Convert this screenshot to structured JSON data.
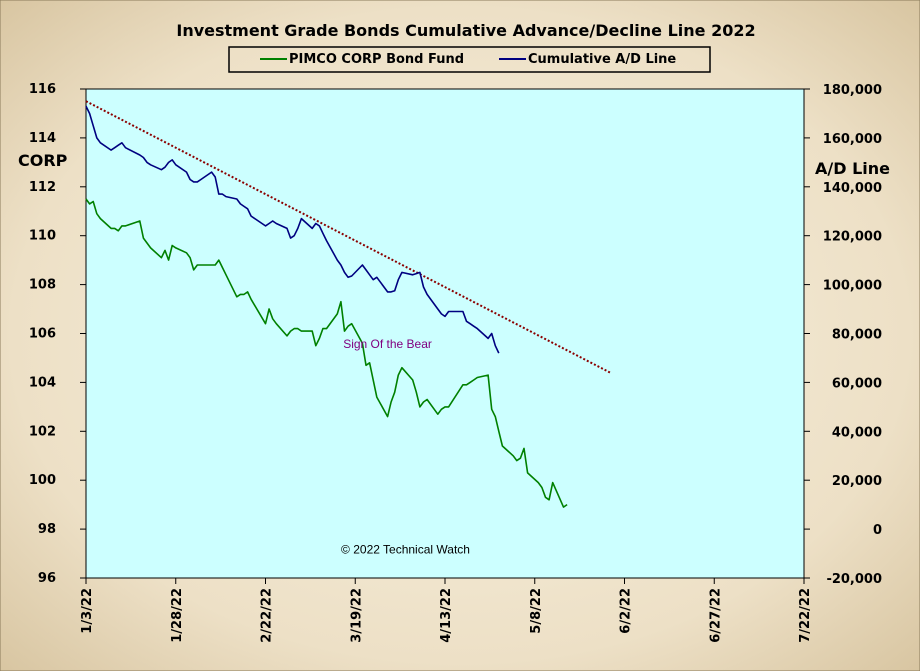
{
  "chart_data": {
    "type": "line",
    "title": "Investment Grade Bonds Cumulative Advance/Decline Line 2022",
    "ylabel_left": "CORP",
    "ylabel_right": "A/D Line",
    "ylim_left": [
      96,
      116
    ],
    "ylim_right": [
      -20000,
      180000
    ],
    "left_ticks": [
      "96",
      "98",
      "100",
      "102",
      "104",
      "106",
      "108",
      "110",
      "112",
      "114",
      "116"
    ],
    "right_ticks": [
      "-20,000",
      "0",
      "20,000",
      "40,000",
      "60,000",
      "80,000",
      "100,000",
      "120,000",
      "140,000",
      "160,000",
      "180,000"
    ],
    "x_ticks": [
      "1/3/22",
      "1/28/22",
      "2/22/22",
      "3/19/22",
      "4/13/22",
      "5/8/22",
      "6/2/22",
      "6/27/22",
      "7/22/22"
    ],
    "x_range": [
      "2022-01-03",
      "2022-07-22"
    ],
    "grid": false,
    "legend_position": "top-center",
    "colors": {
      "outer_background": "#ECDFC4",
      "plot_background": "#CCFFFF",
      "corp": "#008000",
      "ad_line": "#000080",
      "trendline": "#8B0000",
      "annotation": "#800080"
    },
    "series": [
      {
        "name": "PIMCO CORP Bond Fund",
        "axis": "left",
        "points": [
          [
            "2022-01-03",
            111.5
          ],
          [
            "2022-01-04",
            111.3
          ],
          [
            "2022-01-05",
            111.4
          ],
          [
            "2022-01-06",
            110.9
          ],
          [
            "2022-01-07",
            110.7
          ],
          [
            "2022-01-10",
            110.3
          ],
          [
            "2022-01-11",
            110.3
          ],
          [
            "2022-01-12",
            110.2
          ],
          [
            "2022-01-13",
            110.4
          ],
          [
            "2022-01-14",
            110.4
          ],
          [
            "2022-01-18",
            110.6
          ],
          [
            "2022-01-19",
            109.9
          ],
          [
            "2022-01-20",
            109.7
          ],
          [
            "2022-01-21",
            109.5
          ],
          [
            "2022-01-24",
            109.1
          ],
          [
            "2022-01-25",
            109.4
          ],
          [
            "2022-01-26",
            109.0
          ],
          [
            "2022-01-27",
            109.6
          ],
          [
            "2022-01-28",
            109.5
          ],
          [
            "2022-01-31",
            109.3
          ],
          [
            "2022-02-01",
            109.1
          ],
          [
            "2022-02-02",
            108.6
          ],
          [
            "2022-02-03",
            108.8
          ],
          [
            "2022-02-04",
            108.8
          ],
          [
            "2022-02-07",
            108.8
          ],
          [
            "2022-02-08",
            108.8
          ],
          [
            "2022-02-09",
            109.0
          ],
          [
            "2022-02-10",
            108.7
          ],
          [
            "2022-02-11",
            108.4
          ],
          [
            "2022-02-14",
            107.5
          ],
          [
            "2022-02-15",
            107.6
          ],
          [
            "2022-02-16",
            107.6
          ],
          [
            "2022-02-17",
            107.7
          ],
          [
            "2022-02-18",
            107.4
          ],
          [
            "2022-02-22",
            106.4
          ],
          [
            "2022-02-23",
            107.0
          ],
          [
            "2022-02-24",
            106.6
          ],
          [
            "2022-02-25",
            106.4
          ],
          [
            "2022-02-28",
            105.9
          ],
          [
            "2022-03-01",
            106.1
          ],
          [
            "2022-03-02",
            106.2
          ],
          [
            "2022-03-03",
            106.2
          ],
          [
            "2022-03-04",
            106.1
          ],
          [
            "2022-03-07",
            106.1
          ],
          [
            "2022-03-08",
            105.5
          ],
          [
            "2022-03-09",
            105.8
          ],
          [
            "2022-03-10",
            106.2
          ],
          [
            "2022-03-11",
            106.2
          ],
          [
            "2022-03-14",
            106.8
          ],
          [
            "2022-03-15",
            107.3
          ],
          [
            "2022-03-16",
            106.1
          ],
          [
            "2022-03-17",
            106.3
          ],
          [
            "2022-03-18",
            106.4
          ],
          [
            "2022-03-21",
            105.6
          ],
          [
            "2022-03-22",
            104.7
          ],
          [
            "2022-03-23",
            104.8
          ],
          [
            "2022-03-24",
            104.1
          ],
          [
            "2022-03-25",
            103.4
          ],
          [
            "2022-03-28",
            102.6
          ],
          [
            "2022-03-29",
            103.2
          ],
          [
            "2022-03-30",
            103.6
          ],
          [
            "2022-03-31",
            104.3
          ],
          [
            "2022-04-01",
            104.6
          ],
          [
            "2022-04-04",
            104.1
          ],
          [
            "2022-04-05",
            103.6
          ],
          [
            "2022-04-06",
            103.0
          ],
          [
            "2022-04-07",
            103.2
          ],
          [
            "2022-04-08",
            103.3
          ],
          [
            "2022-04-11",
            102.7
          ],
          [
            "2022-04-12",
            102.9
          ],
          [
            "2022-04-13",
            103.0
          ],
          [
            "2022-04-14",
            103.0
          ],
          [
            "2022-04-18",
            103.9
          ],
          [
            "2022-04-19",
            103.9
          ],
          [
            "2022-04-20",
            104.0
          ],
          [
            "2022-04-21",
            104.1
          ],
          [
            "2022-04-22",
            104.2
          ],
          [
            "2022-04-25",
            104.3
          ],
          [
            "2022-04-26",
            102.9
          ],
          [
            "2022-04-27",
            102.6
          ],
          [
            "2022-04-28",
            102.0
          ],
          [
            "2022-04-29",
            101.4
          ],
          [
            "2022-05-02",
            101.0
          ],
          [
            "2022-05-03",
            100.8
          ],
          [
            "2022-05-04",
            100.9
          ],
          [
            "2022-05-05",
            101.3
          ],
          [
            "2022-05-06",
            100.3
          ],
          [
            "2022-05-09",
            99.9
          ],
          [
            "2022-05-10",
            99.7
          ],
          [
            "2022-05-11",
            99.3
          ],
          [
            "2022-05-12",
            99.2
          ],
          [
            "2022-05-13",
            99.9
          ],
          [
            "2022-05-16",
            98.9
          ],
          [
            "2022-05-17",
            99.0
          ]
        ]
      },
      {
        "name": "Cumulative A/D Line",
        "axis": "right",
        "points": [
          [
            "2022-01-03",
            173000
          ],
          [
            "2022-01-04",
            170000
          ],
          [
            "2022-01-05",
            165000
          ],
          [
            "2022-01-06",
            160000
          ],
          [
            "2022-01-07",
            158000
          ],
          [
            "2022-01-10",
            155000
          ],
          [
            "2022-01-11",
            156000
          ],
          [
            "2022-01-12",
            157000
          ],
          [
            "2022-01-13",
            158000
          ],
          [
            "2022-01-14",
            156000
          ],
          [
            "2022-01-18",
            153000
          ],
          [
            "2022-01-19",
            152000
          ],
          [
            "2022-01-20",
            150000
          ],
          [
            "2022-01-21",
            149000
          ],
          [
            "2022-01-24",
            147000
          ],
          [
            "2022-01-25",
            148000
          ],
          [
            "2022-01-26",
            150000
          ],
          [
            "2022-01-27",
            151000
          ],
          [
            "2022-01-28",
            149000
          ],
          [
            "2022-01-31",
            146000
          ],
          [
            "2022-02-01",
            143000
          ],
          [
            "2022-02-02",
            142000
          ],
          [
            "2022-02-03",
            142000
          ],
          [
            "2022-02-04",
            143000
          ],
          [
            "2022-02-07",
            146000
          ],
          [
            "2022-02-08",
            144000
          ],
          [
            "2022-02-09",
            137000
          ],
          [
            "2022-02-10",
            137000
          ],
          [
            "2022-02-11",
            136000
          ],
          [
            "2022-02-14",
            135000
          ],
          [
            "2022-02-15",
            133000
          ],
          [
            "2022-02-16",
            132000
          ],
          [
            "2022-02-17",
            131000
          ],
          [
            "2022-02-18",
            128000
          ],
          [
            "2022-02-22",
            124000
          ],
          [
            "2022-02-23",
            125000
          ],
          [
            "2022-02-24",
            126000
          ],
          [
            "2022-02-25",
            125000
          ],
          [
            "2022-02-28",
            123000
          ],
          [
            "2022-03-01",
            119000
          ],
          [
            "2022-03-02",
            120000
          ],
          [
            "2022-03-03",
            123000
          ],
          [
            "2022-03-04",
            127000
          ],
          [
            "2022-03-07",
            123000
          ],
          [
            "2022-03-08",
            125000
          ],
          [
            "2022-03-09",
            124000
          ],
          [
            "2022-03-10",
            121000
          ],
          [
            "2022-03-11",
            118000
          ],
          [
            "2022-03-14",
            110000
          ],
          [
            "2022-03-15",
            108000
          ],
          [
            "2022-03-16",
            105000
          ],
          [
            "2022-03-17",
            103000
          ],
          [
            "2022-03-18",
            103500
          ],
          [
            "2022-03-21",
            108000
          ],
          [
            "2022-03-22",
            106000
          ],
          [
            "2022-03-23",
            104000
          ],
          [
            "2022-03-24",
            102000
          ],
          [
            "2022-03-25",
            103000
          ],
          [
            "2022-03-28",
            97000
          ],
          [
            "2022-03-29",
            97000
          ],
          [
            "2022-03-30",
            97500
          ],
          [
            "2022-03-31",
            102000
          ],
          [
            "2022-04-01",
            105000
          ],
          [
            "2022-04-04",
            104000
          ],
          [
            "2022-04-05",
            104500
          ],
          [
            "2022-04-06",
            105000
          ],
          [
            "2022-04-07",
            99000
          ],
          [
            "2022-04-08",
            96000
          ],
          [
            "2022-04-11",
            90000
          ],
          [
            "2022-04-12",
            88000
          ],
          [
            "2022-04-13",
            87000
          ],
          [
            "2022-04-14",
            89000
          ],
          [
            "2022-04-18",
            89000
          ],
          [
            "2022-04-19",
            85000
          ],
          [
            "2022-04-20",
            84000
          ],
          [
            "2022-04-21",
            83000
          ],
          [
            "2022-04-22",
            82000
          ],
          [
            "2022-04-25",
            78000
          ],
          [
            "2022-04-26",
            80000
          ],
          [
            "2022-04-27",
            75000
          ],
          [
            "2022-04-28",
            72000
          ]
        ]
      }
    ],
    "trendline": {
      "axis": "right",
      "style": "dotted",
      "points": [
        [
          "2022-01-03",
          175000
        ],
        [
          "2022-05-29",
          64000
        ]
      ]
    },
    "annotations": [
      {
        "text": "Sign Of the Bear",
        "x": "2022-03-28",
        "y": 105.4,
        "axis": "left"
      },
      {
        "text": "© 2022 Technical Watch",
        "x": "2022-04-02",
        "y": 97.0,
        "axis": "left"
      }
    ]
  }
}
